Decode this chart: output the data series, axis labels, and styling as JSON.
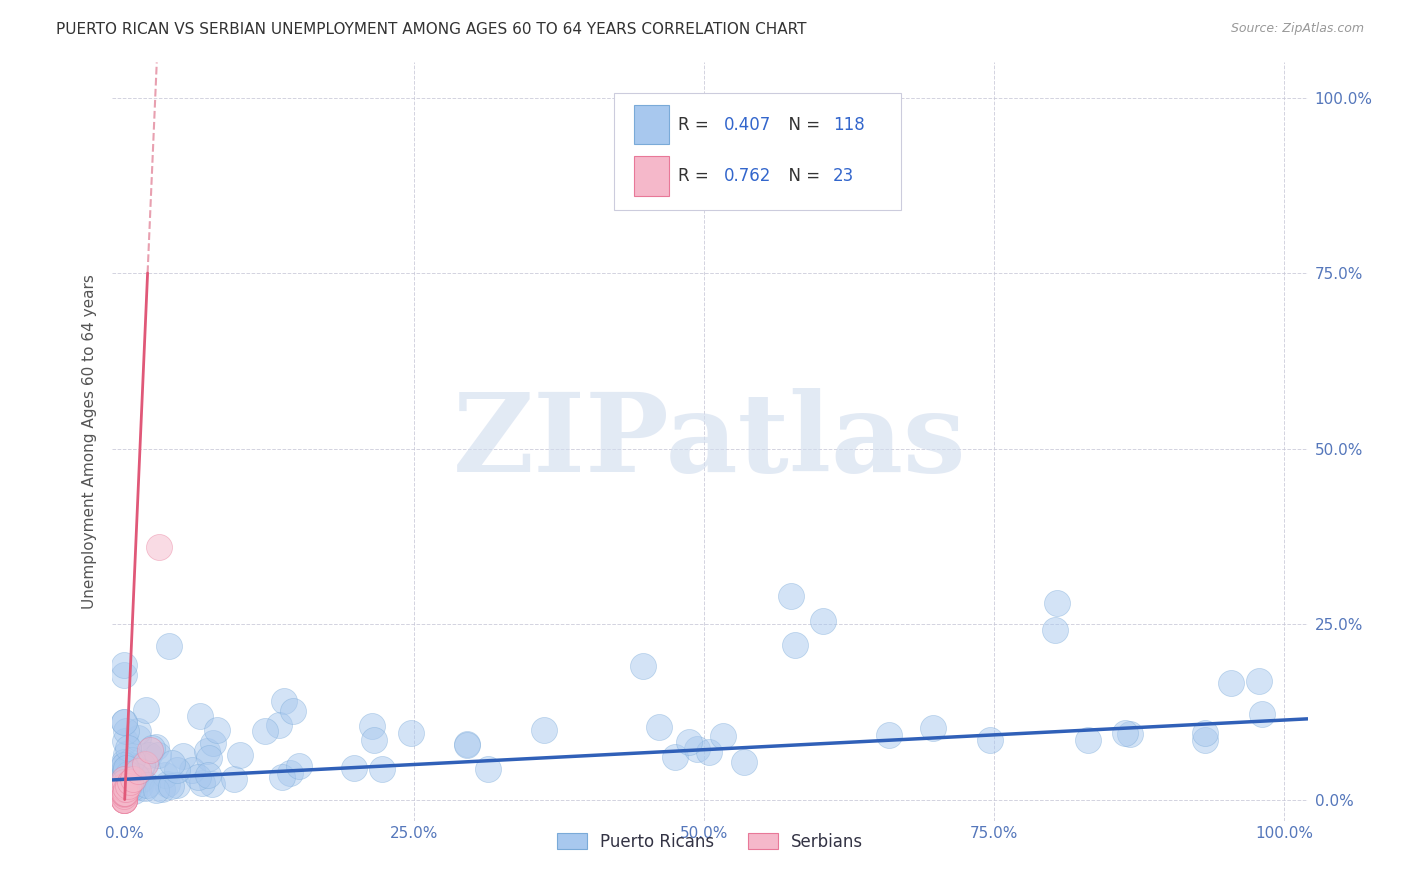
{
  "title": "PUERTO RICAN VS SERBIAN UNEMPLOYMENT AMONG AGES 60 TO 64 YEARS CORRELATION CHART",
  "source": "Source: ZipAtlas.com",
  "ylabel": "Unemployment Among Ages 60 to 64 years",
  "watermark": "ZIPatlas",
  "legend_entries": [
    {
      "label": "Puerto Ricans",
      "R": 0.407,
      "N": 118,
      "color": "#A8C8EE",
      "edge_color": "#7AAAD8"
    },
    {
      "label": "Serbians",
      "R": 0.762,
      "N": 23,
      "color": "#F5B8CA",
      "edge_color": "#E87898"
    }
  ],
  "ytick_labels": [
    "",
    "25.0%",
    "50.0%",
    "75.0%",
    "100.0%"
  ],
  "ytick_values": [
    0.0,
    0.25,
    0.5,
    0.75,
    1.0
  ],
  "xtick_labels": [
    "0.0%",
    "25.0%",
    "50.0%",
    "75.0%",
    "100.0%"
  ],
  "xtick_values": [
    0.0,
    0.25,
    0.5,
    0.75,
    1.0
  ],
  "right_ytick_labels": [
    "100.0%",
    "75.0%",
    "50.0%",
    "25.0%",
    "0.0%"
  ],
  "pr_line_color": "#3060B8",
  "serb_line_color": "#E05878",
  "serb_dash_color": "#E8A0B0",
  "grid_color": "#C8C8D8",
  "title_color": "#333333",
  "source_color": "#999999",
  "ylabel_color": "#555555",
  "tick_label_color": "#5577BB",
  "legend_R_color": "#3366CC",
  "legend_N_color": "#3366CC",
  "watermark_color": "#D0DCEE",
  "watermark_alpha": 0.6,
  "background_color": "#FFFFFF",
  "xlim": [
    -0.01,
    1.02
  ],
  "ylim": [
    -0.03,
    1.05
  ]
}
